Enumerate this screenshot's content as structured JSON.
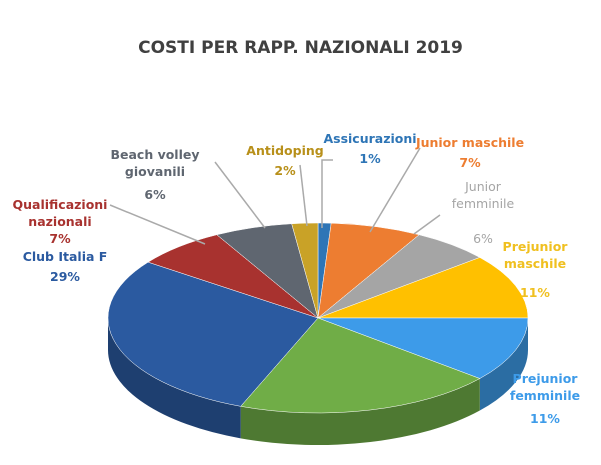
{
  "chart_data": {
    "type": "pie3d",
    "title": "COSTI PER RAPP. NAZIONALI 2019",
    "categories": [
      "Assicurazioni",
      "Junior maschile",
      "Junior femminile",
      "Prejunior maschile",
      "Prejunior femminile",
      null,
      "Club Italia F",
      "Qualificazioni nazionali",
      "Beach volley giovanili",
      "Antidoping"
    ],
    "values": [
      1,
      7,
      6,
      11,
      11,
      20,
      29,
      7,
      6,
      2
    ],
    "value_labels": [
      "1%",
      "7%",
      "6%",
      "11%",
      "11%",
      null,
      "29%",
      "7%",
      "6%",
      "2%"
    ],
    "colors": [
      "#2e75b6",
      "#ed7d31",
      "#a5a5a5",
      "#ffc000",
      "#3d9be9",
      "#70ad47",
      "#2b5aa0",
      "#a8322f",
      "#5f6670",
      "#c9a227"
    ]
  }
}
